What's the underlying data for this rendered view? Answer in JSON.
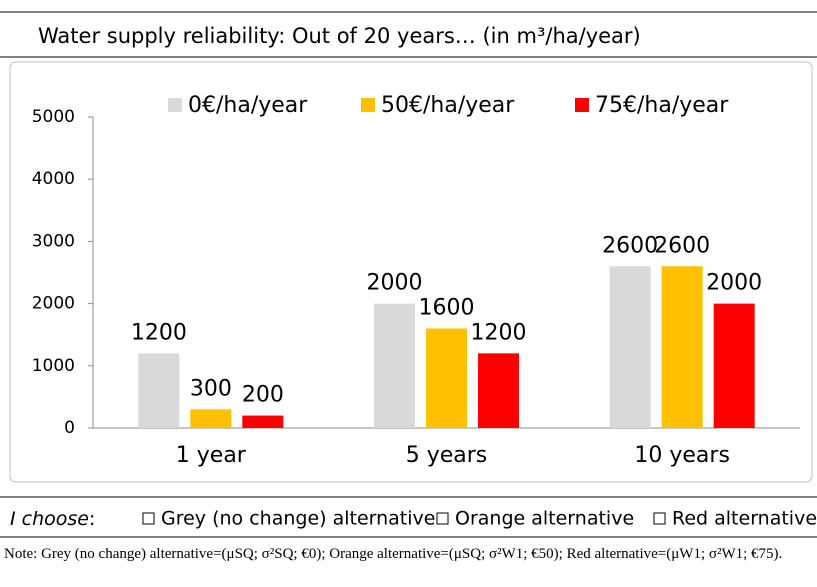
{
  "header": {
    "title": "Water supply reliability: Out of 20 years… (in m³/ha/year)"
  },
  "chart_data": {
    "type": "bar",
    "categories": [
      "1 year",
      "5 years",
      "10 years"
    ],
    "series": [
      {
        "name": "0€/ha/year",
        "color": "#d9d9d9",
        "values": [
          1200,
          2000,
          2600
        ]
      },
      {
        "name": "50€/ha/year",
        "color": "#ffc000",
        "values": [
          300,
          1600,
          2600
        ]
      },
      {
        "name": "75€/ha/year",
        "color": "#ff0000",
        "values": [
          200,
          1200,
          2000
        ]
      }
    ],
    "ylim": [
      0,
      5000
    ],
    "yticks": [
      0,
      1000,
      2000,
      3000,
      4000,
      5000
    ],
    "grid": false,
    "legend": "top"
  },
  "choice": {
    "label": "I choose",
    "separator": ":",
    "options": [
      "Grey (no change) alternative",
      "Orange alternative",
      "Red alternative"
    ]
  },
  "note": "Note: Grey (no change) alternative=(μSQ; σ²SQ; €0); Orange alternative=(μSQ; σ²W1; €50); Red alternative=(μW1; σ²W1; €75)."
}
